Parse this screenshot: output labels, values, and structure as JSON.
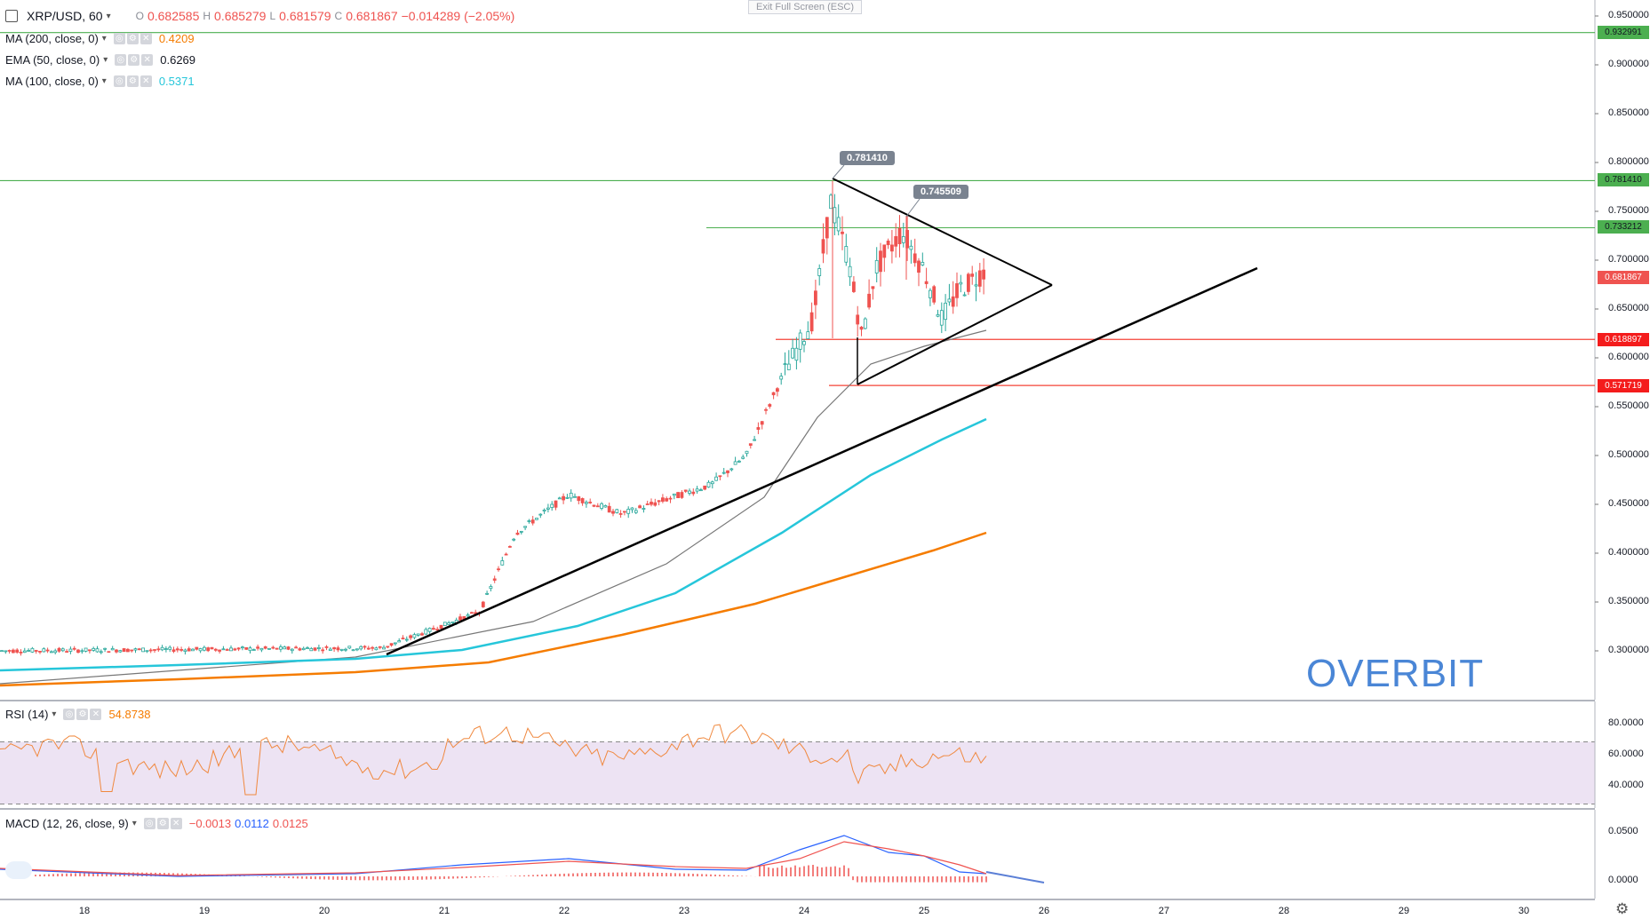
{
  "toolbar": {
    "exit_fullscreen": "Exit Full Screen (ESC)"
  },
  "symbol": {
    "name": "XRP/USD, 60",
    "open_key": "O",
    "open": "0.682585",
    "high_key": "H",
    "high": "0.685279",
    "low_key": "L",
    "low": "0.681579",
    "close_key": "C",
    "close": "0.681867",
    "change": "−0.014289 (−2.05%)"
  },
  "indicators": [
    {
      "label": "MA (200, close, 0)",
      "value": "0.4209",
      "color": "#f57c00"
    },
    {
      "label": "EMA (50, close, 0)",
      "value": "0.6269",
      "color": "#131722"
    },
    {
      "label": "MA (100, close, 0)",
      "value": "0.5371",
      "color": "#26c6da"
    }
  ],
  "callouts": {
    "high1": "0.781410",
    "high2": "0.745509"
  },
  "price_axis": [
    "0.950000",
    "0.900000",
    "0.850000",
    "0.800000",
    "0.750000",
    "0.700000",
    "0.650000",
    "0.600000",
    "0.550000",
    "0.500000",
    "0.450000",
    "0.400000",
    "0.350000",
    "0.300000"
  ],
  "price_labels": {
    "l1": "0.932991",
    "l2": "0.781410",
    "l3": "0.733212",
    "last": "0.681867",
    "l5": "0.618897",
    "l6": "0.571719"
  },
  "watermark": "OVERBIT",
  "rsi": {
    "label": "RSI (14)",
    "value": "54.8738",
    "axis": [
      "80.0000",
      "60.0000",
      "40.0000"
    ]
  },
  "macd": {
    "label": "MACD (12, 26, close, 9)",
    "v1": "−0.0013",
    "v2": "0.0112",
    "v3": "0.0125",
    "axis": [
      "0.0500",
      "0.0000"
    ]
  },
  "time_axis": [
    "18",
    "19",
    "20",
    "21",
    "22",
    "23",
    "24",
    "25",
    "26",
    "27",
    "28",
    "29",
    "30"
  ],
  "colors": {
    "up": "#26a69a",
    "down": "#ef5350",
    "green_line": "#4caf50",
    "red_line": "#f44336",
    "ma200": "#f57c00",
    "ma100": "#26c6da",
    "rsi_band": "#ede3f3",
    "rsi_line": "#f0883e",
    "macd_line": "#2962ff",
    "signal_line": "#ef5350",
    "accent": "#4a86d6"
  },
  "chart_data": {
    "type": "candlestick",
    "title": "XRP/USD, 60",
    "ylim": [
      0.25,
      0.96
    ],
    "x": [
      "18",
      "19",
      "20",
      "21",
      "22",
      "23",
      "24",
      "25",
      "26",
      "27",
      "28",
      "29",
      "30"
    ],
    "key_prices": [
      0.932991,
      0.78141,
      0.733212,
      0.681867,
      0.618897,
      0.571719
    ],
    "ma200_end": 0.4209,
    "ema50_end": 0.6269,
    "ma100_end": 0.5371,
    "rsi_last": 54.8738,
    "macd_last": [
      -0.0013,
      0.0112,
      0.0125
    ]
  }
}
